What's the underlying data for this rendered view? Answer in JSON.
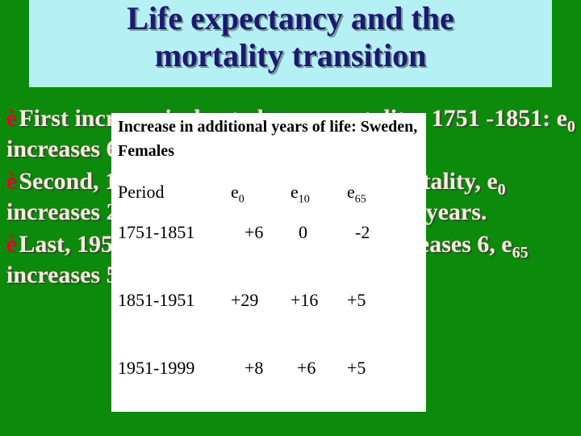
{
  "title": {
    "line1": "Life expectancy and the",
    "line2": "mortality transition"
  },
  "bullets": {
    "arrow_glyph": "è",
    "b1_text": "First increase is due to lower mortality; 1751 -1851: e0 increases 6 years, e65 decreases 2 years",
    "b2_text": "Second, 1851-1951, declining child mortality, e0 increases 29, e15 16 years; e65 increases 5 years.",
    "b3_text": "Last, 1951-1999, e0 increases 8; e15 increases 6, e65 increases 5 years."
  },
  "popup": {
    "caption": "Increase in additional years of life:  Sweden, Females",
    "headers": {
      "period": "Period",
      "e0": "e",
      "e0_sub": "0",
      "e10": "e",
      "e10_sub": "10",
      "e65": "e",
      "e65_sub": "65"
    },
    "rows": [
      {
        "period": "1751-1851",
        "e0": "+6",
        "e10": "0",
        "e65": "-2"
      },
      {
        "period": "1851-1951",
        "e0": "+29",
        "e10": "+16",
        "e65": "+5"
      },
      {
        "period": "1951-1999",
        "e0": "+8",
        "e10": "+6",
        "e65": "+5"
      }
    ]
  },
  "colors": {
    "background": "#0b8a0b",
    "title_box": "#b5f0f4",
    "title_text": "#1a1a6e",
    "bullet_text": "#f4f0d8",
    "arrow": "#e8002d",
    "popup": "#ffffff"
  }
}
